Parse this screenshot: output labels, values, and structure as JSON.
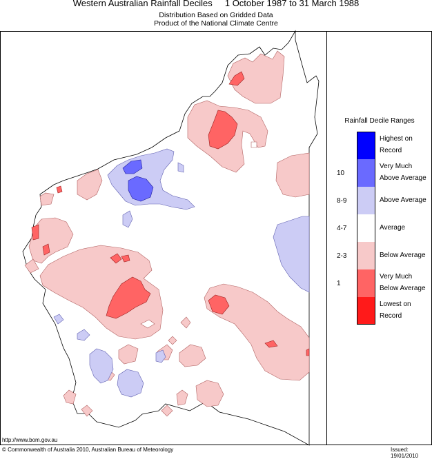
{
  "header": {
    "title": "Western Australian Rainfall Deciles     1 October 1987 to 31 March 1988",
    "subtitle1": "Distribution Based on Gridded Data",
    "subtitle2": "Product of the National Climate Centre"
  },
  "legend": {
    "title": "Rainfall Decile Ranges",
    "items": [
      {
        "label": "Highest on Record",
        "color": "#0000ff",
        "range": ""
      },
      {
        "label": "Very Much Above Average",
        "color": "#6a6aff",
        "range": "10"
      },
      {
        "label": "Above Average",
        "color": "#ccccf5",
        "range": "8-9"
      },
      {
        "label": "Average",
        "color": "#ffffff",
        "range": "4-7"
      },
      {
        "label": "Below Average",
        "color": "#f7c9c9",
        "range": "2-3"
      },
      {
        "label": "Very Much Below Average",
        "color": "#ff6464",
        "range": "1"
      },
      {
        "label": "Lowest on Record",
        "color": "#ff1a1a",
        "range": ""
      }
    ]
  },
  "footer": {
    "url": "http://www.bom.gov.au",
    "copyright": "© Commonwealth of Australia 2010, Australian Bureau of Meteorology",
    "issued": "Issued: 19/01/2010"
  }
}
